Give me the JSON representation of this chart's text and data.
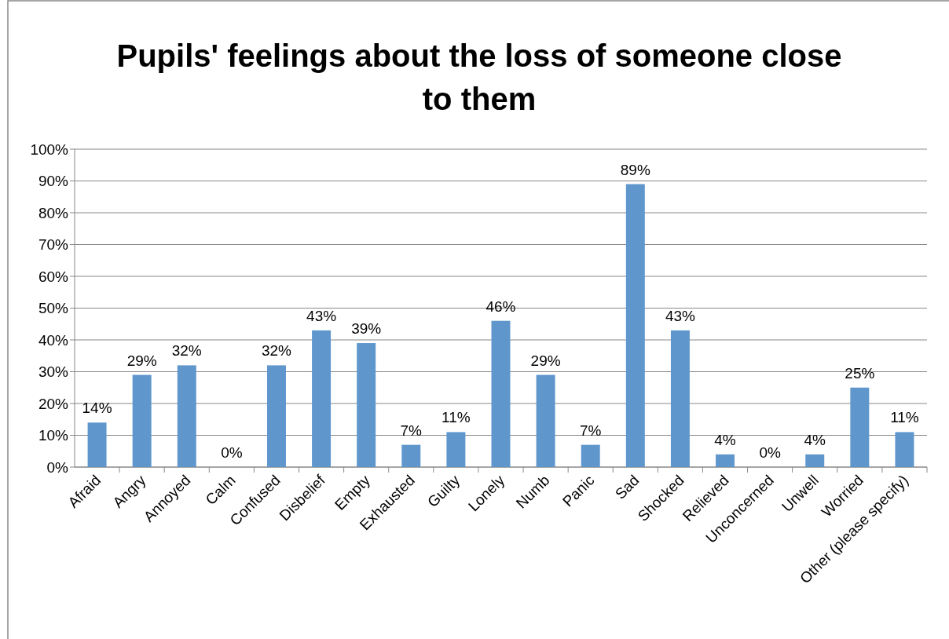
{
  "chart_data": {
    "type": "bar",
    "title": "Pupils' feelings about the loss of someone close to them",
    "categories": [
      "Afraid",
      "Angry",
      "Annoyed",
      "Calm",
      "Confused",
      "Disbelief",
      "Empty",
      "Exhausted",
      "Guilty",
      "Lonely",
      "Numb",
      "Panic",
      "Sad",
      "Shocked",
      "Relieved",
      "Unconcerned",
      "Unwell",
      "Worried",
      "Other (please specify)"
    ],
    "values": [
      14,
      29,
      32,
      0,
      32,
      43,
      39,
      7,
      11,
      46,
      29,
      7,
      89,
      43,
      4,
      0,
      4,
      25,
      11
    ],
    "value_labels": [
      "14%",
      "29%",
      "32%",
      "0%",
      "32%",
      "43%",
      "39%",
      "7%",
      "11%",
      "46%",
      "29%",
      "7%",
      "89%",
      "43%",
      "4%",
      "0%",
      "4%",
      "25%",
      "11%"
    ],
    "color": "#5f97cd",
    "ylim": [
      0,
      100
    ],
    "yticks": [
      {
        "value": 0,
        "label": "0%"
      },
      {
        "value": 10,
        "label": "10%"
      },
      {
        "value": 20,
        "label": "20%"
      },
      {
        "value": 30,
        "label": "30%"
      },
      {
        "value": 40,
        "label": "40%"
      },
      {
        "value": 50,
        "label": "50%"
      },
      {
        "value": 60,
        "label": "60%"
      },
      {
        "value": 70,
        "label": "70%"
      },
      {
        "value": 80,
        "label": "80%"
      },
      {
        "value": 90,
        "label": "90%"
      },
      {
        "value": 100,
        "label": "100%"
      }
    ],
    "grid": "y"
  }
}
